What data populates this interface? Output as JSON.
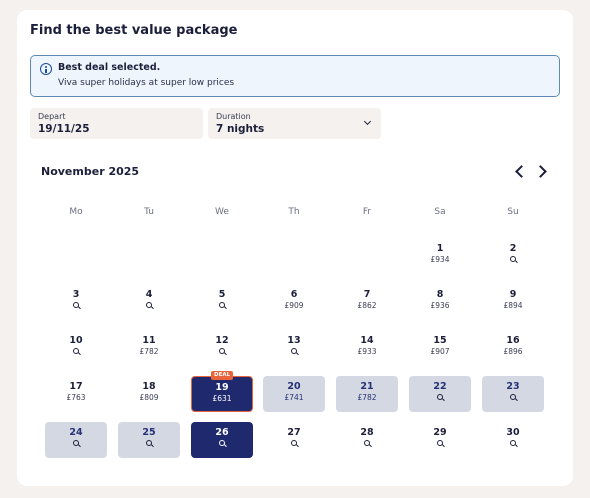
{
  "title": "Find the best value package",
  "info": {
    "heading": "Best deal selected.",
    "text": "Viva super holidays at super low prices"
  },
  "depart": {
    "label": "Depart",
    "value": "19/11/25"
  },
  "duration": {
    "label": "Duration",
    "value": "7 nights"
  },
  "calendar": {
    "month": "November 2025",
    "weekdays": [
      "Mo",
      "Tu",
      "We",
      "Th",
      "Fr",
      "Sa",
      "Su"
    ],
    "days": [
      {
        "day": "1",
        "price": "£934"
      },
      {
        "day": "2",
        "price": ""
      },
      {
        "day": "3",
        "price": ""
      },
      {
        "day": "4",
        "price": ""
      },
      {
        "day": "5",
        "price": ""
      },
      {
        "day": "6",
        "price": "£909"
      },
      {
        "day": "7",
        "price": "£862"
      },
      {
        "day": "8",
        "price": "£936"
      },
      {
        "day": "9",
        "price": "£894"
      },
      {
        "day": "10",
        "price": ""
      },
      {
        "day": "11",
        "price": "£782"
      },
      {
        "day": "12",
        "price": ""
      },
      {
        "day": "13",
        "price": ""
      },
      {
        "day": "14",
        "price": "£933"
      },
      {
        "day": "15",
        "price": "£907"
      },
      {
        "day": "16",
        "price": "£896"
      },
      {
        "day": "17",
        "price": "£763"
      },
      {
        "day": "18",
        "price": "£809"
      },
      {
        "day": "19",
        "price": "£631",
        "state": "sel",
        "deal": "DEAL"
      },
      {
        "day": "20",
        "price": "£741",
        "state": "range"
      },
      {
        "day": "21",
        "price": "£782",
        "state": "range"
      },
      {
        "day": "22",
        "price": "",
        "state": "range"
      },
      {
        "day": "23",
        "price": "",
        "state": "range"
      },
      {
        "day": "24",
        "price": "",
        "state": "range"
      },
      {
        "day": "25",
        "price": "",
        "state": "range"
      },
      {
        "day": "26",
        "price": "",
        "state": "sel"
      },
      {
        "day": "27",
        "price": ""
      },
      {
        "day": "28",
        "price": ""
      },
      {
        "day": "29",
        "price": ""
      },
      {
        "day": "30",
        "price": ""
      }
    ]
  }
}
